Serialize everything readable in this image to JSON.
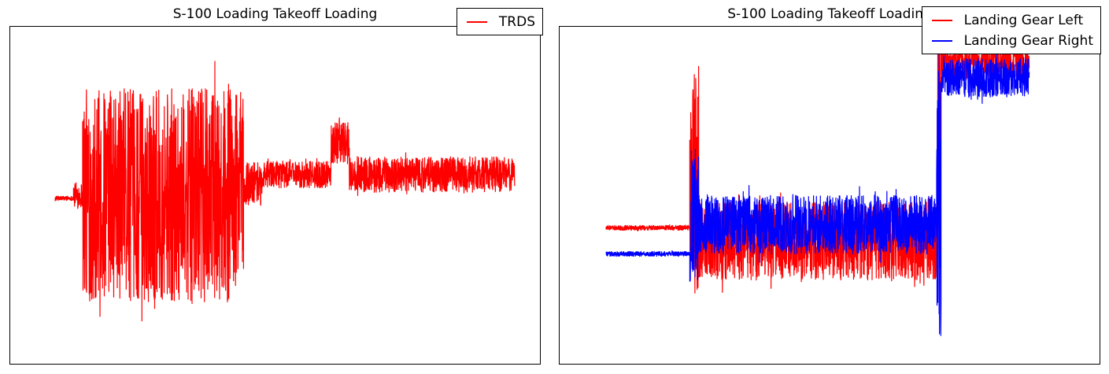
{
  "chart_data": [
    {
      "type": "line",
      "title": "S-100 Loading Takeoff Loading",
      "xlabel": "",
      "ylabel": "",
      "grid": false,
      "legend_position": "top-right",
      "series": [
        {
          "name": "TRDS",
          "color": "#ff0000",
          "segments": [
            {
              "x_start": 0.0,
              "x_end": 0.04,
              "center": -0.02,
              "amplitude": 0.02
            },
            {
              "x_start": 0.04,
              "x_end": 0.06,
              "center": 0.0,
              "amplitude": 0.12
            },
            {
              "x_start": 0.06,
              "x_end": 0.41,
              "center": 0.0,
              "amplitude": 0.96
            },
            {
              "x_start": 0.41,
              "x_end": 0.45,
              "center": 0.08,
              "amplitude": 0.2
            },
            {
              "x_start": 0.45,
              "x_end": 0.6,
              "center": 0.14,
              "amplitude": 0.12
            },
            {
              "x_start": 0.6,
              "x_end": 0.64,
              "center": 0.36,
              "amplitude": 0.2
            },
            {
              "x_start": 0.64,
              "x_end": 1.0,
              "center": 0.14,
              "amplitude": 0.16
            }
          ]
        }
      ],
      "xlim": [
        0,
        1
      ],
      "ylim": [
        -1.1,
        1.1
      ]
    },
    {
      "type": "line",
      "title": "S-100 Loading Takeoff Loading",
      "xlabel": "",
      "ylabel": "",
      "grid": false,
      "legend_position": "top-right",
      "series": [
        {
          "name": "Landing Gear Left",
          "color": "#ff0000",
          "segments": [
            {
              "x_start": 0.0,
              "x_end": 0.19,
              "center": -0.2,
              "amplitude": 0.02
            },
            {
              "x_start": 0.19,
              "x_end": 0.21,
              "center": 0.1,
              "amplitude": 0.95
            },
            {
              "x_start": 0.21,
              "x_end": 0.75,
              "center": -0.28,
              "amplitude": 0.32
            },
            {
              "x_start": 0.75,
              "x_end": 0.76,
              "center": 0.3,
              "amplitude": 0.9
            },
            {
              "x_start": 0.76,
              "x_end": 0.96,
              "center": 0.82,
              "amplitude": 0.14
            }
          ]
        },
        {
          "name": "Landing Gear Right",
          "color": "#0000ff",
          "segments": [
            {
              "x_start": 0.0,
              "x_end": 0.19,
              "center": -0.36,
              "amplitude": 0.02
            },
            {
              "x_start": 0.19,
              "x_end": 0.21,
              "center": -0.12,
              "amplitude": 0.55
            },
            {
              "x_start": 0.21,
              "x_end": 0.75,
              "center": -0.18,
              "amplitude": 0.24
            },
            {
              "x_start": 0.75,
              "x_end": 0.76,
              "center": 0.0,
              "amplitude": 1.2
            },
            {
              "x_start": 0.76,
              "x_end": 0.96,
              "center": 0.72,
              "amplitude": 0.16
            }
          ]
        }
      ],
      "xlim": [
        0,
        1
      ],
      "ylim": [
        -1.0,
        1.0
      ]
    }
  ]
}
